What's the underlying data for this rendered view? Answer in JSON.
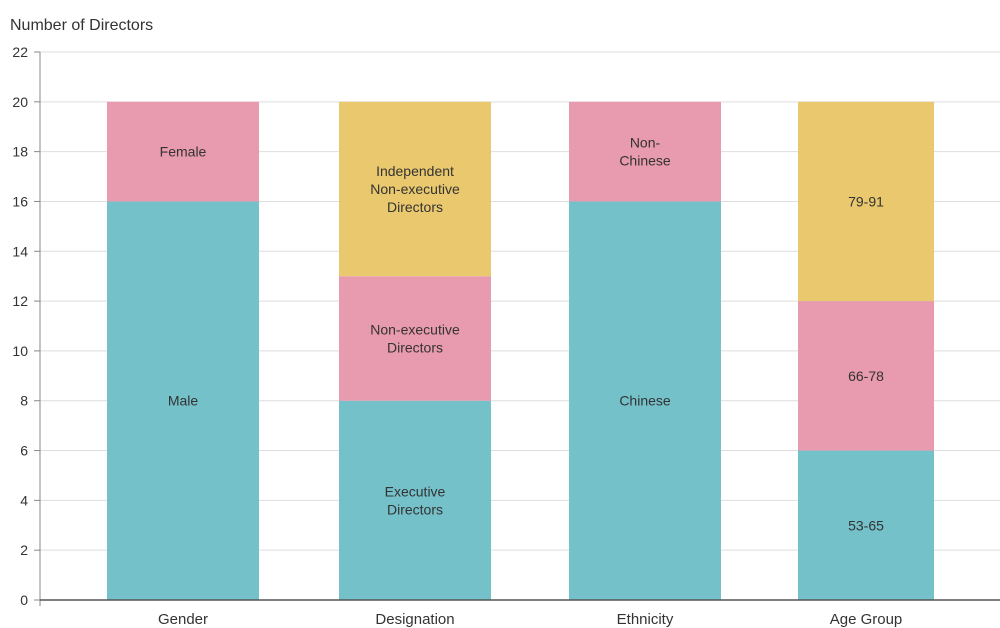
{
  "chart_data": {
    "type": "bar",
    "stacked": true,
    "ylabel": "Number of Directors",
    "ylim": [
      0,
      22
    ],
    "yticks": [
      0,
      2,
      4,
      6,
      8,
      10,
      12,
      14,
      16,
      18,
      20,
      22
    ],
    "grid": true,
    "categories": [
      "Gender",
      "Designation",
      "Ethnicity",
      "Age Group"
    ],
    "colors": {
      "teal": "#74c1ca",
      "pink": "#e89aae",
      "yellow": "#eac86e"
    },
    "bars": [
      {
        "category": "Gender",
        "segments": [
          {
            "label": "Male",
            "value": 16,
            "color": "teal"
          },
          {
            "label": "Female",
            "value": 4,
            "color": "pink"
          }
        ]
      },
      {
        "category": "Designation",
        "segments": [
          {
            "label": "Executive\nDirectors",
            "value": 8,
            "color": "teal"
          },
          {
            "label": "Non-executive\nDirectors",
            "value": 5,
            "color": "pink"
          },
          {
            "label": "Independent\nNon-executive\nDirectors",
            "value": 7,
            "color": "yellow"
          }
        ]
      },
      {
        "category": "Ethnicity",
        "segments": [
          {
            "label": "Chinese",
            "value": 16,
            "color": "teal"
          },
          {
            "label": "Non-\nChinese",
            "value": 4,
            "color": "pink"
          }
        ]
      },
      {
        "category": "Age Group",
        "segments": [
          {
            "label": "53-65",
            "value": 6,
            "color": "teal"
          },
          {
            "label": "66-78",
            "value": 6,
            "color": "pink"
          },
          {
            "label": "79-91",
            "value": 8,
            "color": "yellow"
          }
        ]
      }
    ]
  }
}
